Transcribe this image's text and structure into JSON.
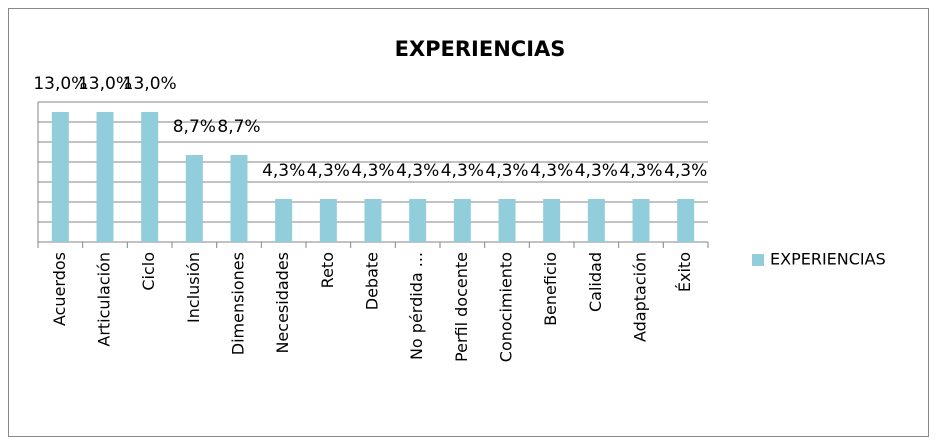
{
  "chart_data": {
    "type": "bar",
    "title": "EXPERIENCIAS",
    "categories": [
      "Acuerdos",
      "Articulación",
      "Ciclo",
      "Inclusión",
      "Dimensiones",
      "Necesidades",
      "Reto",
      "Debate",
      "No pérdida ...",
      "Perfil docente",
      "Conocimiento",
      "Beneficio",
      "Calidad",
      "Adaptación",
      "Éxito"
    ],
    "series": [
      {
        "name": "EXPERIENCIAS",
        "color": "#92cddc",
        "values": [
          13.0,
          13.0,
          13.0,
          8.7,
          8.7,
          4.3,
          4.3,
          4.3,
          4.3,
          4.3,
          4.3,
          4.3,
          4.3,
          4.3,
          4.3
        ],
        "value_labels": [
          "13,0%",
          "13,0%",
          "13,0%",
          "8,7%",
          "8,7%",
          "4,3%",
          "4,3%",
          "4,3%",
          "4,3%",
          "4,3%",
          "4,3%",
          "4,3%",
          "4,3%",
          "4,3%",
          "4,3%"
        ]
      }
    ],
    "ylim": [
      0,
      14
    ],
    "yticks": [
      0,
      2,
      4,
      6,
      8,
      10,
      12,
      14
    ],
    "grid": true,
    "legend": "right"
  }
}
